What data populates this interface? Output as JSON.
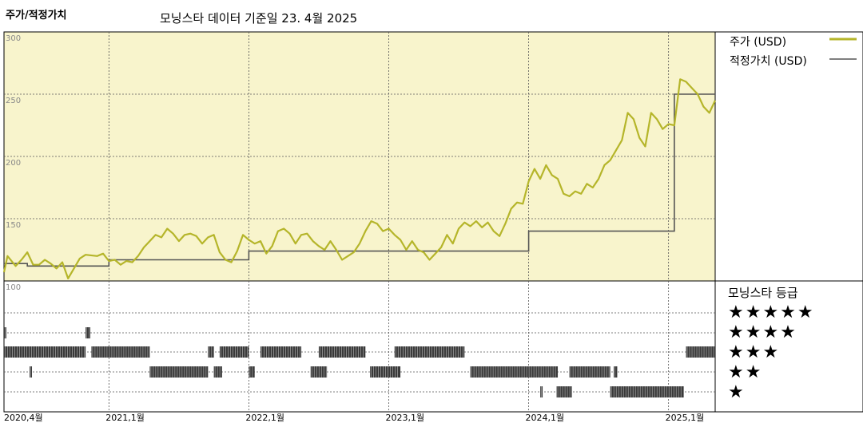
{
  "header": {
    "left_title": "주가/적정가치",
    "center_title": "모닝스타 데이터 기준일 23. 4월 2025"
  },
  "legend": {
    "price_label": "주가 (USD)",
    "fair_label": "적정가치 (USD)",
    "rating_title": "모닝스타 등급",
    "star_rows": [
      "★★★★★",
      "★★★★",
      "★★★",
      "★★",
      "★"
    ]
  },
  "colors": {
    "price": "#b5b52a",
    "fair": "#555555",
    "upper_bg": "#f8f4cc",
    "rating_bar": "#3a3a3a"
  },
  "chart_data": {
    "type": "line",
    "x_start": "2020-04",
    "x_end": "2025-04",
    "x_tick_labels": [
      "2020,4월",
      "2021,1월",
      "2022,1월",
      "2023,1월",
      "2024,1월",
      "2025,1월"
    ],
    "x_tick_months": [
      0,
      9,
      21,
      33,
      45,
      57
    ],
    "y_tick_labels": [
      "300",
      "250",
      "200",
      "150",
      "100"
    ],
    "ylim": [
      100,
      300
    ],
    "series": [
      {
        "name": "주가 (USD)",
        "points": [
          [
            0,
            107
          ],
          [
            0.3,
            120
          ],
          [
            1.0,
            112
          ],
          [
            1.5,
            117
          ],
          [
            2.0,
            123
          ],
          [
            2.5,
            113
          ],
          [
            3.0,
            113
          ],
          [
            3.5,
            117
          ],
          [
            4.0,
            114
          ],
          [
            4.5,
            110
          ],
          [
            5.0,
            115
          ],
          [
            5.5,
            102
          ],
          [
            6.0,
            110
          ],
          [
            6.5,
            118
          ],
          [
            7.0,
            121
          ],
          [
            8.0,
            120
          ],
          [
            8.5,
            122
          ],
          [
            9.0,
            116
          ],
          [
            9.5,
            117
          ],
          [
            10.0,
            113
          ],
          [
            10.5,
            116
          ],
          [
            11.0,
            115
          ],
          [
            11.5,
            120
          ],
          [
            12.0,
            127
          ],
          [
            12.5,
            132
          ],
          [
            13.0,
            137
          ],
          [
            13.5,
            135
          ],
          [
            14.0,
            142
          ],
          [
            14.5,
            138
          ],
          [
            15.0,
            132
          ],
          [
            15.5,
            137
          ],
          [
            16.0,
            138
          ],
          [
            16.5,
            136
          ],
          [
            17.0,
            130
          ],
          [
            17.5,
            135
          ],
          [
            18.0,
            137
          ],
          [
            18.5,
            123
          ],
          [
            19.0,
            117
          ],
          [
            19.5,
            115
          ],
          [
            20.0,
            124
          ],
          [
            20.5,
            137
          ],
          [
            21.0,
            133
          ],
          [
            21.5,
            130
          ],
          [
            22.0,
            132
          ],
          [
            22.5,
            122
          ],
          [
            23.0,
            128
          ],
          [
            23.5,
            140
          ],
          [
            24.0,
            142
          ],
          [
            24.5,
            138
          ],
          [
            25.0,
            130
          ],
          [
            25.5,
            137
          ],
          [
            26.0,
            138
          ],
          [
            26.5,
            132
          ],
          [
            27.0,
            128
          ],
          [
            27.5,
            125
          ],
          [
            28.0,
            132
          ],
          [
            28.5,
            125
          ],
          [
            29.0,
            117
          ],
          [
            29.5,
            120
          ],
          [
            30.0,
            123
          ],
          [
            30.5,
            130
          ],
          [
            31.0,
            140
          ],
          [
            31.5,
            148
          ],
          [
            32.0,
            146
          ],
          [
            32.5,
            140
          ],
          [
            33.0,
            142
          ],
          [
            33.5,
            137
          ],
          [
            34.0,
            133
          ],
          [
            34.5,
            125
          ],
          [
            35.0,
            132
          ],
          [
            35.5,
            125
          ],
          [
            36.0,
            123
          ],
          [
            36.5,
            117
          ],
          [
            37.0,
            122
          ],
          [
            37.5,
            127
          ],
          [
            38.0,
            137
          ],
          [
            38.5,
            130
          ],
          [
            39.0,
            142
          ],
          [
            39.5,
            147
          ],
          [
            40.0,
            144
          ],
          [
            40.5,
            148
          ],
          [
            41.0,
            143
          ],
          [
            41.5,
            147
          ],
          [
            42.0,
            140
          ],
          [
            42.5,
            136
          ],
          [
            43.0,
            146
          ],
          [
            43.5,
            158
          ],
          [
            44.0,
            163
          ],
          [
            44.5,
            162
          ],
          [
            45.0,
            180
          ],
          [
            45.5,
            190
          ],
          [
            46.0,
            182
          ],
          [
            46.5,
            193
          ],
          [
            47.0,
            185
          ],
          [
            47.5,
            182
          ],
          [
            48.0,
            170
          ],
          [
            48.5,
            168
          ],
          [
            49.0,
            172
          ],
          [
            49.5,
            170
          ],
          [
            50.0,
            178
          ],
          [
            50.5,
            175
          ],
          [
            51.0,
            182
          ],
          [
            51.5,
            193
          ],
          [
            52.0,
            197
          ],
          [
            52.5,
            205
          ],
          [
            53.0,
            213
          ],
          [
            53.5,
            235
          ],
          [
            54.0,
            230
          ],
          [
            54.5,
            215
          ],
          [
            55.0,
            208
          ],
          [
            55.5,
            235
          ],
          [
            56.0,
            230
          ],
          [
            56.5,
            222
          ],
          [
            57.0,
            226
          ],
          [
            57.5,
            225
          ],
          [
            58.0,
            262
          ],
          [
            58.5,
            260
          ],
          [
            59.0,
            255
          ],
          [
            59.5,
            250
          ],
          [
            60.0,
            240
          ],
          [
            60.5,
            235
          ],
          [
            61.0,
            245
          ]
        ]
      },
      {
        "name": "적정가치 (USD)",
        "points": [
          [
            0,
            114
          ],
          [
            2,
            114
          ],
          [
            2,
            112
          ],
          [
            9,
            112
          ],
          [
            9,
            117
          ],
          [
            21,
            117
          ],
          [
            21,
            124
          ],
          [
            45,
            124
          ],
          [
            45,
            140
          ],
          [
            57.5,
            140
          ],
          [
            57.5,
            250
          ],
          [
            61,
            250
          ]
        ]
      }
    ],
    "rating": {
      "rows": [
        "★★★★★",
        "★★★★",
        "★★★",
        "★★",
        "★"
      ],
      "segments": [
        {
          "stars": 5,
          "from": 0,
          "to": 0.2
        },
        {
          "stars": 5,
          "from": 7,
          "to": 7.4
        },
        {
          "stars": 4,
          "from": 0,
          "to": 7
        },
        {
          "stars": 4,
          "from": 7.5,
          "to": 12.5
        },
        {
          "stars": 4,
          "from": 17.5,
          "to": 18
        },
        {
          "stars": 4,
          "from": 18.5,
          "to": 21
        },
        {
          "stars": 4,
          "from": 22,
          "to": 25.5
        },
        {
          "stars": 4,
          "from": 27,
          "to": 31
        },
        {
          "stars": 4,
          "from": 33.5,
          "to": 39.5
        },
        {
          "stars": 4,
          "from": 58.5,
          "to": 61
        },
        {
          "stars": 3,
          "from": 2.2,
          "to": 2.4
        },
        {
          "stars": 3,
          "from": 12.5,
          "to": 17.5
        },
        {
          "stars": 3,
          "from": 18,
          "to": 18.7
        },
        {
          "stars": 3,
          "from": 21,
          "to": 21.5
        },
        {
          "stars": 3,
          "from": 26.3,
          "to": 27.7
        },
        {
          "stars": 3,
          "from": 31.4,
          "to": 34
        },
        {
          "stars": 3,
          "from": 40,
          "to": 47.5
        },
        {
          "stars": 3,
          "from": 48.5,
          "to": 52
        },
        {
          "stars": 3,
          "from": 52.3,
          "to": 52.6
        },
        {
          "stars": 2,
          "from": 46,
          "to": 46.2
        },
        {
          "stars": 2,
          "from": 47.4,
          "to": 48.7
        },
        {
          "stars": 2,
          "from": 52,
          "to": 58.3
        }
      ]
    }
  }
}
